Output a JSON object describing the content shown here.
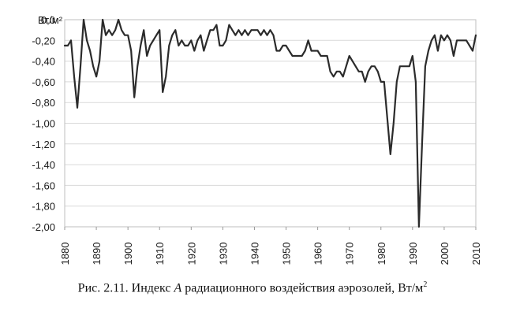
{
  "chart_data": {
    "type": "line",
    "title": "",
    "xlabel": "",
    "ylabel": "",
    "y_unit": "Вт/м²",
    "xlim": [
      1880,
      2010
    ],
    "ylim": [
      -2.0,
      0.0
    ],
    "grid": "horizontal",
    "x_ticks": [
      "1880",
      "1890",
      "1900",
      "1910",
      "1920",
      "1930",
      "1940",
      "1950",
      "1960",
      "1970",
      "1980",
      "1990",
      "2000",
      "2010"
    ],
    "y_ticks": [
      "0,0",
      "-0,20",
      "-0,40",
      "-0,60",
      "-0,80",
      "-1,00",
      "-1,20",
      "-1,40",
      "-1,60",
      "-1,80",
      "-2,00"
    ],
    "series": [
      {
        "name": "",
        "color": "#2b2b2b",
        "x": [
          1880,
          1881,
          1882,
          1883,
          1884,
          1885,
          1886,
          1887,
          1888,
          1889,
          1890,
          1891,
          1892,
          1893,
          1894,
          1895,
          1896,
          1897,
          1898,
          1899,
          1900,
          1901,
          1902,
          1903,
          1904,
          1905,
          1906,
          1907,
          1908,
          1909,
          1910,
          1911,
          1912,
          1913,
          1914,
          1915,
          1916,
          1917,
          1918,
          1919,
          1920,
          1921,
          1922,
          1923,
          1924,
          1925,
          1926,
          1927,
          1928,
          1929,
          1930,
          1931,
          1932,
          1933,
          1934,
          1935,
          1936,
          1937,
          1938,
          1939,
          1940,
          1941,
          1942,
          1943,
          1944,
          1945,
          1946,
          1947,
          1948,
          1949,
          1950,
          1951,
          1952,
          1953,
          1954,
          1955,
          1956,
          1957,
          1958,
          1959,
          1960,
          1961,
          1962,
          1963,
          1964,
          1965,
          1966,
          1967,
          1968,
          1969,
          1970,
          1971,
          1972,
          1973,
          1974,
          1975,
          1976,
          1977,
          1978,
          1979,
          1980,
          1981,
          1982,
          1983,
          1984,
          1985,
          1986,
          1987,
          1988,
          1989,
          1990,
          1991,
          1992,
          1993,
          1994,
          1995,
          1996,
          1997,
          1998,
          1999,
          2000,
          2001,
          2002,
          2003,
          2004,
          2005,
          2006,
          2007,
          2008,
          2009,
          2010
        ],
        "y": [
          -0.25,
          -0.25,
          -0.2,
          -0.55,
          -0.85,
          -0.45,
          0.0,
          -0.2,
          -0.3,
          -0.45,
          -0.55,
          -0.4,
          0.0,
          -0.15,
          -0.1,
          -0.15,
          -0.1,
          0.0,
          -0.1,
          -0.15,
          -0.15,
          -0.3,
          -0.75,
          -0.45,
          -0.25,
          -0.1,
          -0.35,
          -0.25,
          -0.2,
          -0.15,
          -0.1,
          -0.7,
          -0.55,
          -0.25,
          -0.15,
          -0.1,
          -0.25,
          -0.2,
          -0.25,
          -0.25,
          -0.2,
          -0.3,
          -0.2,
          -0.15,
          -0.3,
          -0.2,
          -0.1,
          -0.1,
          -0.05,
          -0.25,
          -0.25,
          -0.2,
          -0.05,
          -0.1,
          -0.15,
          -0.1,
          -0.15,
          -0.1,
          -0.15,
          -0.1,
          -0.1,
          -0.1,
          -0.15,
          -0.1,
          -0.15,
          -0.1,
          -0.15,
          -0.3,
          -0.3,
          -0.25,
          -0.25,
          -0.3,
          -0.35,
          -0.35,
          -0.35,
          -0.35,
          -0.3,
          -0.2,
          -0.3,
          -0.3,
          -0.3,
          -0.35,
          -0.35,
          -0.35,
          -0.5,
          -0.55,
          -0.5,
          -0.5,
          -0.55,
          -0.45,
          -0.35,
          -0.4,
          -0.45,
          -0.5,
          -0.5,
          -0.6,
          -0.5,
          -0.45,
          -0.45,
          -0.5,
          -0.6,
          -0.6,
          -0.95,
          -1.3,
          -1.0,
          -0.6,
          -0.45,
          -0.45,
          -0.45,
          -0.45,
          -0.35,
          -0.6,
          -2.0,
          -1.2,
          -0.45,
          -0.3,
          -0.2,
          -0.15,
          -0.3,
          -0.15,
          -0.2,
          -0.15,
          -0.2,
          -0.35,
          -0.2,
          -0.2,
          -0.2,
          -0.2,
          -0.25,
          -0.3,
          -0.15
        ]
      }
    ]
  },
  "caption": {
    "prefix": "Рис. 2.11. Индекс ",
    "italic": "A",
    "suffix": " радиационного воздействия аэрозолей, Вт/м",
    "sup": "2"
  }
}
